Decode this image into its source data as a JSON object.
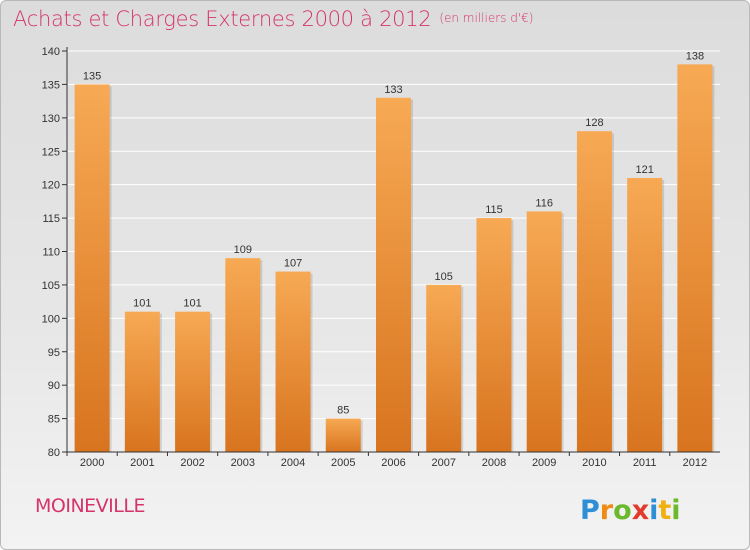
{
  "header": {
    "title": "Achats et Charges Externes 2000 à 2012",
    "unit": "(en milliers d'€)"
  },
  "footer": {
    "commune": "MOINEVILLE",
    "logo_text": "Proxiti"
  },
  "colors": {
    "bar_light": "#f7a954",
    "bar_dark": "#d8741f",
    "title": "#d6336c",
    "grid": "#ffffff"
  },
  "chart_data": {
    "type": "bar",
    "title": "Achats et Charges Externes 2000 à 2012",
    "categories": [
      "2000",
      "2001",
      "2002",
      "2003",
      "2004",
      "2005",
      "2006",
      "2007",
      "2008",
      "2009",
      "2010",
      "2011",
      "2012"
    ],
    "values": [
      135,
      101,
      101,
      109,
      107,
      85,
      133,
      105,
      115,
      116,
      128,
      121,
      138
    ],
    "ylim": [
      80,
      140
    ],
    "yticks": [
      80,
      85,
      90,
      95,
      100,
      105,
      110,
      115,
      120,
      125,
      130,
      135,
      140
    ],
    "grid": true,
    "data_labels": true
  }
}
